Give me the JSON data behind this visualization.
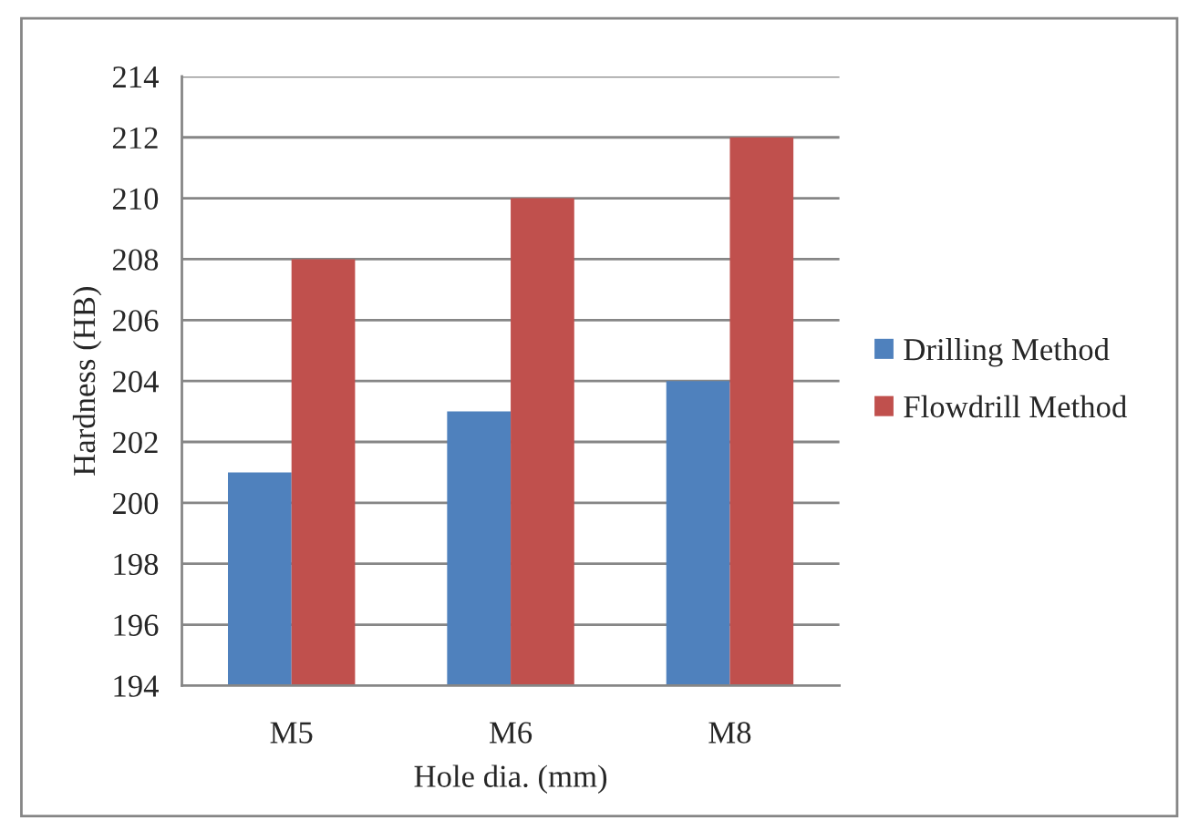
{
  "chart_data": {
    "type": "bar",
    "xlabel": "Hole dia. (mm)",
    "ylabel": "Hardness (HB)",
    "categories": [
      "M5",
      "M6",
      "M8"
    ],
    "series": [
      {
        "name": "Drilling Method",
        "color": "#4f81bd",
        "values": [
          201,
          203,
          204
        ]
      },
      {
        "name": "Flowdrill Method",
        "color": "#c0504d",
        "values": [
          208,
          210,
          212
        ]
      }
    ],
    "ylim": [
      194,
      214
    ],
    "yticks": [
      194,
      196,
      198,
      200,
      202,
      204,
      206,
      208,
      210,
      212,
      214
    ],
    "grid": "y",
    "legend": "right"
  }
}
